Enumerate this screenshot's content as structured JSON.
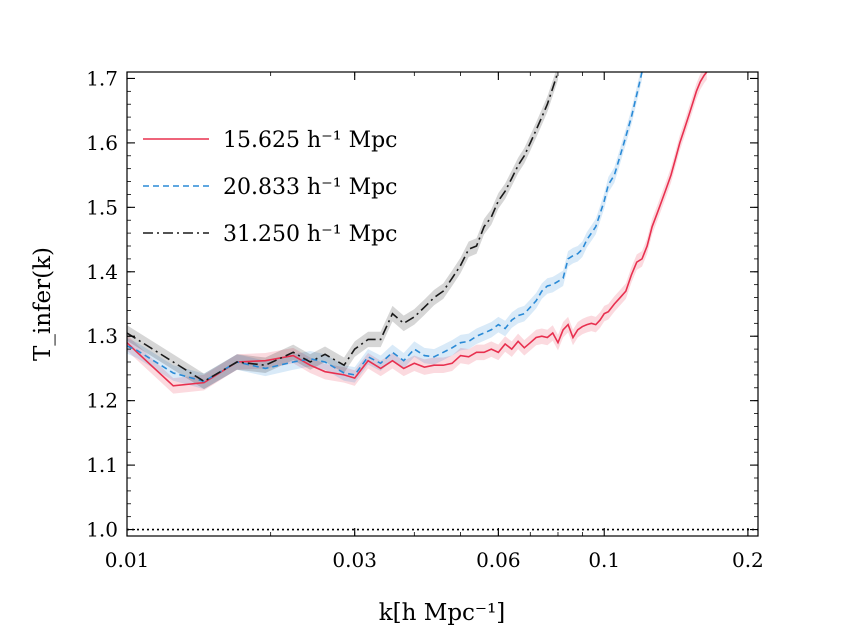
{
  "chart_data": {
    "type": "line",
    "title": "",
    "xlabel": "k[h Mpc⁻¹]",
    "ylabel": "T_infer(k)",
    "xscale": "log",
    "xlim": [
      0.01,
      0.21
    ],
    "ylim": [
      0.99,
      1.71
    ],
    "x_ticks": [
      {
        "value": 0.01,
        "label": "0.01"
      },
      {
        "value": 0.03,
        "label": "0.03"
      },
      {
        "value": 0.06,
        "label": "0.06"
      },
      {
        "value": 0.1,
        "label": "0.1"
      },
      {
        "value": 0.2,
        "label": "0.2"
      }
    ],
    "y_ticks": [
      {
        "value": 1.0,
        "label": "1.0"
      },
      {
        "value": 1.1,
        "label": "1.1"
      },
      {
        "value": 1.2,
        "label": "1.2"
      },
      {
        "value": 1.3,
        "label": "1.3"
      },
      {
        "value": 1.4,
        "label": "1.4"
      },
      {
        "value": 1.5,
        "label": "1.5"
      },
      {
        "value": 1.6,
        "label": "1.6"
      },
      {
        "value": 1.7,
        "label": "1.7"
      }
    ],
    "reference_line": {
      "y": 1.0,
      "style": "dotted",
      "color": "#000000"
    },
    "legend_position": "top-left",
    "series": [
      {
        "name": "15.625 h⁻¹ Mpc",
        "color": "#e8304f",
        "dash": "solid",
        "band": 0.012,
        "x": [
          0.01,
          0.0105,
          0.0125,
          0.0145,
          0.017,
          0.0195,
          0.0223,
          0.0242,
          0.026,
          0.0285,
          0.03,
          0.032,
          0.034,
          0.036,
          0.038,
          0.04,
          0.042,
          0.044,
          0.046,
          0.048,
          0.05,
          0.052,
          0.054,
          0.056,
          0.058,
          0.06,
          0.062,
          0.064,
          0.066,
          0.068,
          0.07,
          0.072,
          0.074,
          0.076,
          0.078,
          0.08,
          0.082,
          0.084,
          0.086,
          0.088,
          0.09,
          0.092,
          0.094,
          0.096,
          0.098,
          0.1,
          0.102,
          0.105,
          0.108,
          0.111,
          0.114,
          0.117,
          0.12,
          0.123,
          0.126,
          0.129,
          0.132,
          0.135,
          0.138,
          0.141,
          0.144,
          0.147,
          0.15,
          0.153,
          0.156,
          0.159,
          0.162,
          0.164
        ],
        "y": [
          1.29,
          1.275,
          1.223,
          1.228,
          1.26,
          1.262,
          1.27,
          1.255,
          1.245,
          1.24,
          1.235,
          1.262,
          1.25,
          1.262,
          1.25,
          1.258,
          1.252,
          1.255,
          1.255,
          1.258,
          1.27,
          1.268,
          1.275,
          1.275,
          1.28,
          1.275,
          1.288,
          1.28,
          1.292,
          1.282,
          1.29,
          1.298,
          1.3,
          1.298,
          1.305,
          1.29,
          1.31,
          1.318,
          1.298,
          1.31,
          1.315,
          1.318,
          1.32,
          1.318,
          1.325,
          1.335,
          1.338,
          1.35,
          1.36,
          1.37,
          1.395,
          1.415,
          1.42,
          1.44,
          1.47,
          1.49,
          1.51,
          1.53,
          1.55,
          1.575,
          1.6,
          1.62,
          1.64,
          1.66,
          1.68,
          1.695,
          1.705,
          1.71
        ]
      },
      {
        "name": "20.833 h⁻¹ Mpc",
        "color": "#2a8ad6",
        "dash": "dashed",
        "band": 0.012,
        "x": [
          0.01,
          0.0105,
          0.0125,
          0.0145,
          0.017,
          0.0195,
          0.0223,
          0.0242,
          0.026,
          0.0285,
          0.03,
          0.032,
          0.034,
          0.036,
          0.038,
          0.04,
          0.042,
          0.044,
          0.046,
          0.048,
          0.05,
          0.052,
          0.054,
          0.056,
          0.058,
          0.06,
          0.062,
          0.064,
          0.066,
          0.068,
          0.07,
          0.072,
          0.074,
          0.076,
          0.078,
          0.08,
          0.082,
          0.084,
          0.086,
          0.088,
          0.09,
          0.092,
          0.094,
          0.096,
          0.098,
          0.1,
          0.102,
          0.105,
          0.108,
          0.111,
          0.114,
          0.117,
          0.12
        ],
        "y": [
          1.285,
          1.278,
          1.243,
          1.23,
          1.26,
          1.25,
          1.26,
          1.265,
          1.26,
          1.243,
          1.24,
          1.268,
          1.258,
          1.275,
          1.262,
          1.28,
          1.27,
          1.268,
          1.275,
          1.282,
          1.29,
          1.292,
          1.3,
          1.305,
          1.31,
          1.318,
          1.312,
          1.325,
          1.332,
          1.335,
          1.345,
          1.355,
          1.37,
          1.378,
          1.38,
          1.385,
          1.39,
          1.42,
          1.425,
          1.428,
          1.435,
          1.45,
          1.46,
          1.47,
          1.49,
          1.51,
          1.535,
          1.55,
          1.58,
          1.61,
          1.64,
          1.675,
          1.71
        ]
      },
      {
        "name": "31.250 h⁻¹ Mpc",
        "color": "#1a1a1a",
        "dash": "dashdot",
        "band": 0.012,
        "x": [
          0.01,
          0.0125,
          0.0145,
          0.017,
          0.0195,
          0.0223,
          0.0242,
          0.026,
          0.0285,
          0.03,
          0.032,
          0.034,
          0.036,
          0.038,
          0.04,
          0.042,
          0.044,
          0.046,
          0.048,
          0.05,
          0.052,
          0.054,
          0.056,
          0.058,
          0.06,
          0.062,
          0.064,
          0.066,
          0.068,
          0.07,
          0.072,
          0.074,
          0.076,
          0.078,
          0.08
        ],
        "y": [
          1.305,
          1.26,
          1.23,
          1.26,
          1.255,
          1.275,
          1.26,
          1.272,
          1.255,
          1.28,
          1.295,
          1.295,
          1.335,
          1.32,
          1.33,
          1.345,
          1.36,
          1.37,
          1.39,
          1.41,
          1.435,
          1.44,
          1.47,
          1.485,
          1.51,
          1.525,
          1.545,
          1.565,
          1.58,
          1.6,
          1.62,
          1.64,
          1.66,
          1.685,
          1.71
        ]
      }
    ]
  }
}
